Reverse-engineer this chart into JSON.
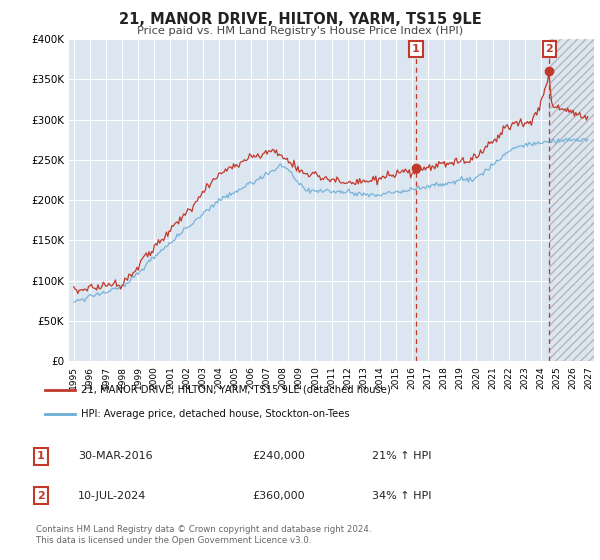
{
  "title": "21, MANOR DRIVE, HILTON, YARM, TS15 9LE",
  "subtitle": "Price paid vs. HM Land Registry's House Price Index (HPI)",
  "legend_line1": "21, MANOR DRIVE, HILTON, YARM, TS15 9LE (detached house)",
  "legend_line2": "HPI: Average price, detached house, Stockton-on-Tees",
  "annotation1_date": "30-MAR-2016",
  "annotation1_price": "£240,000",
  "annotation1_hpi": "21% ↑ HPI",
  "annotation2_date": "10-JUL-2024",
  "annotation2_price": "£360,000",
  "annotation2_hpi": "34% ↑ HPI",
  "footer": "Contains HM Land Registry data © Crown copyright and database right 2024.\nThis data is licensed under the Open Government Licence v3.0.",
  "ylim": [
    0,
    400000
  ],
  "yticks": [
    0,
    50000,
    100000,
    150000,
    200000,
    250000,
    300000,
    350000,
    400000
  ],
  "plot_bg_color": "#dce6f1",
  "red_color": "#c0392b",
  "blue_color": "#6baed6",
  "grid_color": "#ffffff",
  "marker1_x": 2016.25,
  "marker2_x": 2024.53,
  "marker1_y": 240000,
  "marker2_y": 360000,
  "xlim_min": 1994.7,
  "xlim_max": 2027.3
}
